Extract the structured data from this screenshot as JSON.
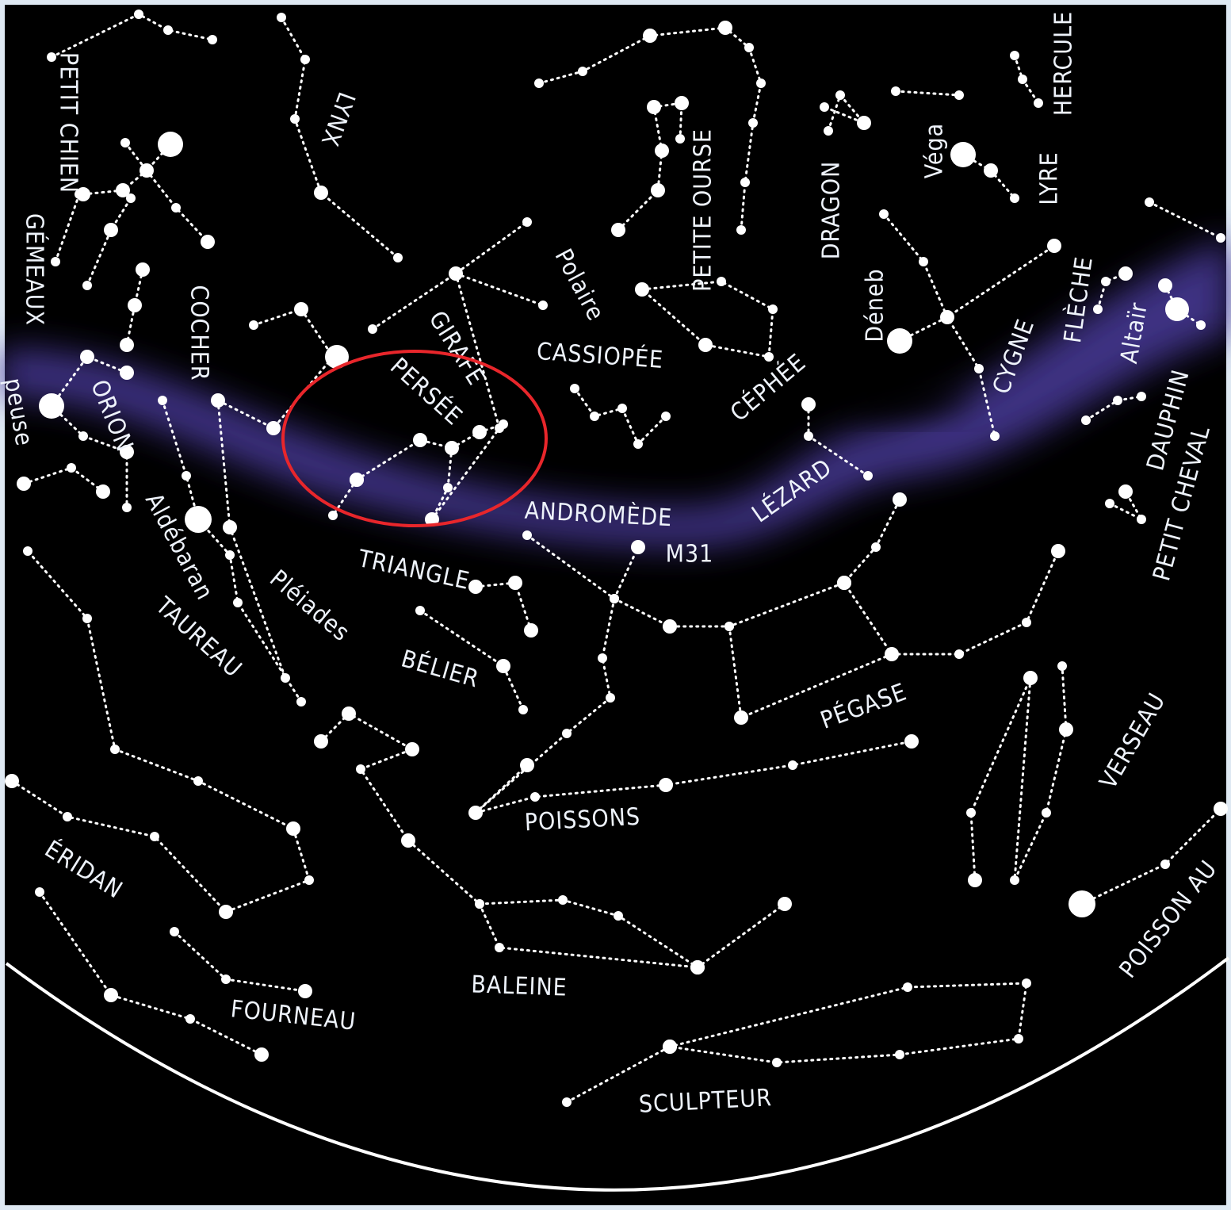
{
  "labels": [
    "PETIT CHIEN",
    "GÉMEAUX",
    "LYNX",
    "COCHER",
    "ORION",
    "peuse",
    "Aldébaran",
    "TAUREAU",
    "Pléiades",
    "TRIANGLE",
    "BÉLIER",
    "GIRAFE",
    "PERSÉE",
    "Polaire",
    "CASSIOPÉE",
    "PETITE OURSE",
    "DRAGON",
    "Déneb",
    "Véga",
    "LYRE",
    "HERCULE",
    "CÉPHÉE",
    "CYGNE",
    "FLÈCHE",
    "Altaïr",
    "DAUPHIN",
    "PETIT CHEVAL",
    "LÉZARD",
    "ANDROMÈDE",
    "M31",
    "PÉGASE",
    "POISSONS",
    "VERSEAU",
    "POISSON AU",
    "ÉRIDAN",
    "FOURNEAU",
    "BALEINE",
    "SCULPTEUR"
  ]
}
